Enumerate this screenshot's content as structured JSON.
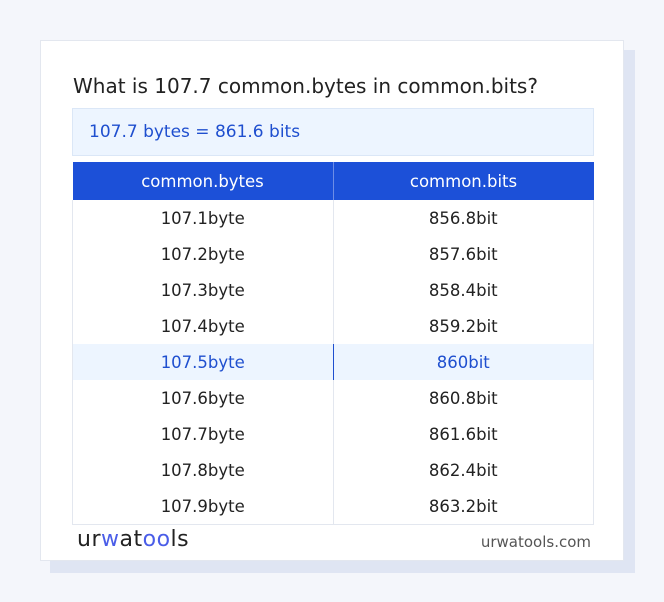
{
  "title": "What is 107.7 common.bytes in common.bits?",
  "result": "107.7 bytes = 861.6 bits",
  "table": {
    "headers": [
      "common.bytes",
      "common.bits"
    ],
    "rows": [
      [
        "107.1byte",
        "856.8bit"
      ],
      [
        "107.2byte",
        "857.6bit"
      ],
      [
        "107.3byte",
        "858.4bit"
      ],
      [
        "107.4byte",
        "859.2bit"
      ],
      [
        "107.5byte",
        "860bit"
      ],
      [
        "107.6byte",
        "860.8bit"
      ],
      [
        "107.7byte",
        "861.6bit"
      ],
      [
        "107.8byte",
        "862.4bit"
      ],
      [
        "107.9byte",
        "863.2bit"
      ]
    ],
    "highlighted_row": 4
  },
  "footer": {
    "logo": "urwatools",
    "site": "urwatools.com"
  },
  "colors": {
    "accent": "#1c50d8",
    "highlight_bg": "#edf5ff"
  }
}
